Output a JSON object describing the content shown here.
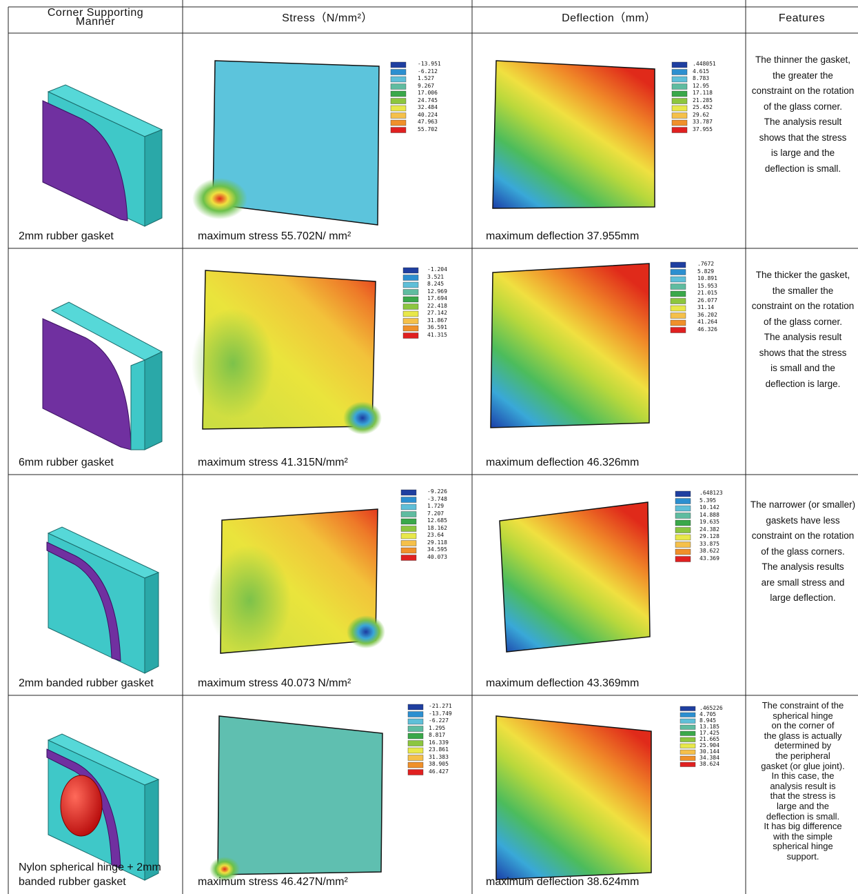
{
  "table": {
    "header": [
      "Corner Supporting Manner",
      "Stress（N/mm²）",
      "Deflection（mm）",
      "Features"
    ],
    "rows": [
      {
        "manner": [
          "2mm rubber gasket"
        ],
        "stress": {
          "caption": "maximum stress 55.702N/ mm²",
          "legend": [
            "-13.951",
            "-6.212",
            "1.527",
            "9.267",
            "17.006",
            "24.745",
            "32.484",
            "40.224",
            "47.963",
            "55.702"
          ]
        },
        "deflection": {
          "caption": "maximum deflection 37.955mm",
          "legend": [
            ".448051",
            "4.615",
            "8.783",
            "12.95",
            "17.118",
            "21.285",
            "25.452",
            "29.62",
            "33.787",
            "37.955"
          ]
        },
        "features": [
          "The thinner the gasket,",
          "the greater the",
          "constraint on the rotation",
          "of the glass corner.",
          "The analysis result",
          "shows that the stress",
          "is large and the",
          "deflection is small."
        ]
      },
      {
        "manner": [
          "6mm rubber gasket"
        ],
        "stress": {
          "caption": "maximum stress 41.315N/mm²",
          "legend": [
            "-1.204",
            "3.521",
            "8.245",
            "12.969",
            "17.694",
            "22.418",
            "27.142",
            "31.867",
            "36.591",
            "41.315"
          ]
        },
        "deflection": {
          "caption": "maximum deflection 46.326mm",
          "legend": [
            ".7672",
            "5.829",
            "10.891",
            "15.953",
            "21.015",
            "26.077",
            "31.14",
            "36.202",
            "41.264",
            "46.326"
          ]
        },
        "features": [
          "The thicker the gasket,",
          "the smaller the",
          "constraint on the rotation",
          "of the glass corner.",
          "The analysis result",
          "shows that the stress",
          "is small and the",
          "deflection is large."
        ]
      },
      {
        "manner": [
          "2mm banded rubber gasket"
        ],
        "stress": {
          "caption": "maximum stress 40.073 N/mm²",
          "legend": [
            "-9.226",
            "-3.748",
            "1.729",
            "7.207",
            "12.685",
            "18.162",
            "23.64",
            "29.118",
            "34.595",
            "40.073"
          ]
        },
        "deflection": {
          "caption": "maximum deflection 43.369mm",
          "legend": [
            ".648123",
            "5.395",
            "10.142",
            "14.888",
            "19.635",
            "24.382",
            "29.128",
            "33.875",
            "38.622",
            "43.369"
          ]
        },
        "features": [
          "The narrower (or smaller)",
          "gaskets have less",
          "constraint on the rotation",
          "of the glass corners.",
          "The analysis results",
          "are small stress and",
          "large deflection."
        ]
      },
      {
        "manner": [
          "Nylon spherical hinge + 2mm",
          "banded rubber gasket"
        ],
        "stress": {
          "caption": "maximum stress 46.427N/mm²",
          "legend": [
            "-21.271",
            "-13.749",
            "-6.227",
            "1.295",
            "8.817",
            "16.339",
            "23.861",
            "31.383",
            "38.905",
            "46.427"
          ]
        },
        "deflection": {
          "caption": "maximum deflection 38.624mm",
          "legend": [
            ".465226",
            "4.705",
            "8.945",
            "13.185",
            "17.425",
            "21.665",
            "25.904",
            "30.144",
            "34.384",
            "38.624"
          ]
        },
        "features": [
          "The constraint of the",
          "spherical  hinge",
          "on the corner of",
          "the glass is actually",
          "determined by",
          "the peripheral",
          "gasket (or glue joint).",
          "In this case, the",
          "analysis result is",
          "that the stress is",
          "large and the",
          "deflection is small.",
          "It has big difference",
          "with the simple",
          "spherical  hinge",
          "support."
        ]
      }
    ]
  }
}
